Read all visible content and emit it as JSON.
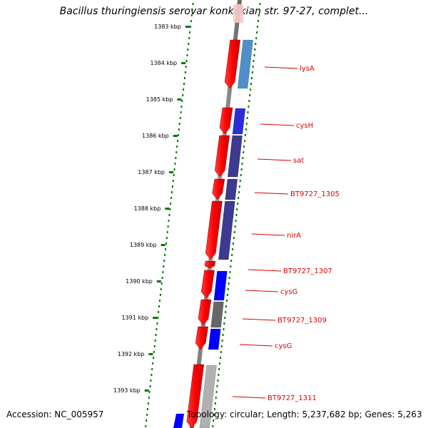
{
  "title": "Bacillus thuringiensis serovar konkukian str. 97-27, complet...",
  "kbp_ticks": [
    "1383 kbp",
    "1384 kbp",
    "1385 kbp",
    "1386 kbp",
    "1387 kbp",
    "1388 kbp",
    "1389 kbp",
    "1390 kbp",
    "1391 kbp",
    "1392 kbp",
    "1393 kbp"
  ],
  "genes": [
    {
      "label": "lysA",
      "color": "#4f8fc9"
    },
    {
      "label": "cysH",
      "color": "#2d2dd8"
    },
    {
      "label": "sat",
      "color": "#3d3a8f"
    },
    {
      "label": "BT9727_1305",
      "color": "#3d3a8f"
    },
    {
      "label": "nirA",
      "color": "#3d3a8f"
    },
    {
      "label": "BT9727_1307",
      "color": "#ff0000"
    },
    {
      "label": "cysG",
      "color": "#0000ff"
    },
    {
      "label": "BT9727_1309",
      "color": "#666666"
    },
    {
      "label": "cysG",
      "color": "#0000ff"
    },
    {
      "label": "BT9727_1311",
      "color": "#b0b0b0"
    }
  ],
  "footer": {
    "accession_label": "Accession:",
    "accession_value": "NC_005957",
    "topology": "Topology: circular; Length: 5,237,682 bp; Genes: 5,263"
  },
  "colors": {
    "forward_strand": "#ff0000",
    "label_line": "#dd0000",
    "tick_green": "#007700",
    "backbone": "#888888"
  }
}
